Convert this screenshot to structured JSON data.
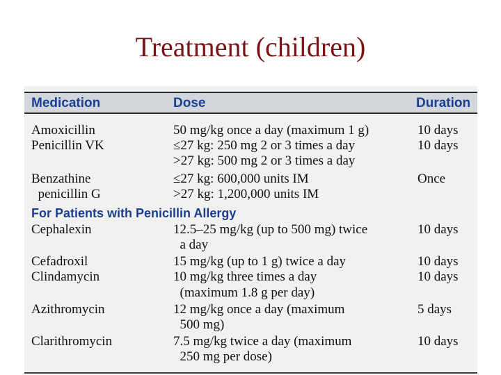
{
  "title": "Treatment (children)",
  "table": {
    "headers": {
      "medication": "Medication",
      "dose": "Dose",
      "duration": "Duration"
    },
    "rows": [
      {
        "med": "Amoxicillin",
        "dose": "50 mg/kg once a day (maximum 1 g)",
        "dur": "10 days"
      },
      {
        "med": "Penicillin VK",
        "dose": "≤27 kg: 250 mg 2 or 3 times a day",
        "dur": "10 days"
      },
      {
        "med": "",
        "dose": ">27 kg: 500 mg 2 or 3 times a day",
        "dur": ""
      },
      {
        "med": "Benzathine",
        "dose": "≤27 kg: 600,000 units IM",
        "dur": "Once"
      },
      {
        "med": "  penicillin G",
        "dose": ">27 kg: 1,200,000 units IM",
        "dur": ""
      }
    ],
    "section_label": "For Patients with Penicillin Allergy",
    "allergy_rows": [
      {
        "med": "Cephalexin",
        "dose": "12.5–25 mg/kg (up to 500 mg) twice",
        "dur": "10 days"
      },
      {
        "med": "",
        "dose": "  a day",
        "dur": ""
      },
      {
        "med": "Cefadroxil",
        "dose": "15 mg/kg (up to 1 g) twice a day",
        "dur": "10 days"
      },
      {
        "med": "Clindamycin",
        "dose": "10 mg/kg three times a day",
        "dur": "10 days"
      },
      {
        "med": "",
        "dose": "  (maximum 1.8 g per day)",
        "dur": ""
      },
      {
        "med": "Azithromycin",
        "dose": "12 mg/kg once a day (maximum",
        "dur": "5 days"
      },
      {
        "med": "",
        "dose": "  500 mg)",
        "dur": ""
      },
      {
        "med": "Clarithromycin",
        "dose": "7.5 mg/kg twice a day (maximum",
        "dur": "10 days"
      },
      {
        "med": "",
        "dose": "  250 mg per dose)",
        "dur": ""
      }
    ]
  }
}
